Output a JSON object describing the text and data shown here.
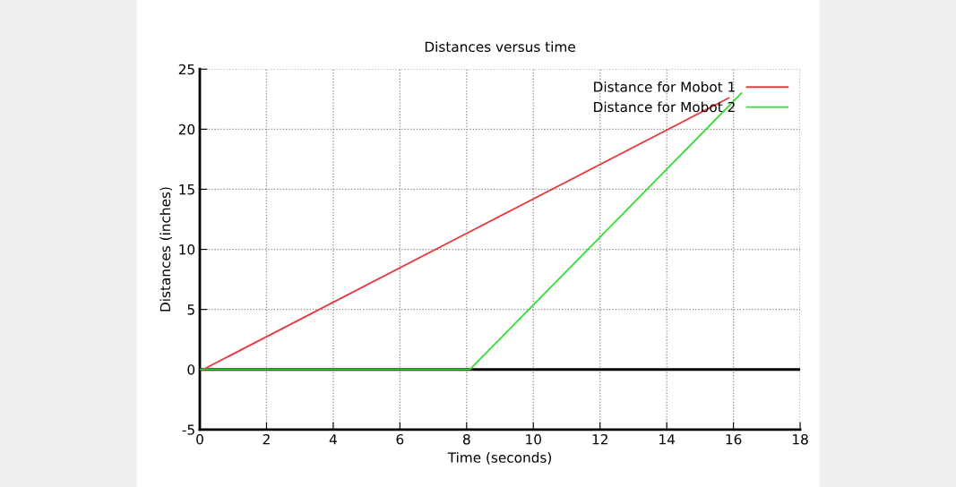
{
  "chart_data": {
    "type": "line",
    "title": "Distances versus time",
    "xlabel": "Time (seconds)",
    "ylabel": "Distances (inches)",
    "series": [
      {
        "name": "Distance for Mobot 1",
        "color": "#e8383d",
        "x": [
          0.1,
          15.86
        ],
        "values": [
          0,
          22.6
        ]
      },
      {
        "name": "Distance for Mobot 2",
        "color": "#33dd33",
        "x": [
          0,
          8.1,
          16.24
        ],
        "values": [
          0,
          0,
          23.0
        ]
      }
    ],
    "xlim": [
      0,
      18
    ],
    "xticks": [
      0,
      2,
      4,
      6,
      8,
      10,
      12,
      14,
      16,
      18
    ],
    "ylim": [
      -5,
      25
    ],
    "yticks": [
      -5,
      0,
      5,
      10,
      15,
      20,
      25
    ],
    "ref_lines": [
      {
        "axis": "y",
        "value": 0,
        "color": "#000000",
        "line_style": "solid"
      }
    ],
    "grid": true,
    "legend": "top right",
    "marker": "none",
    "line_style": "solid"
  }
}
